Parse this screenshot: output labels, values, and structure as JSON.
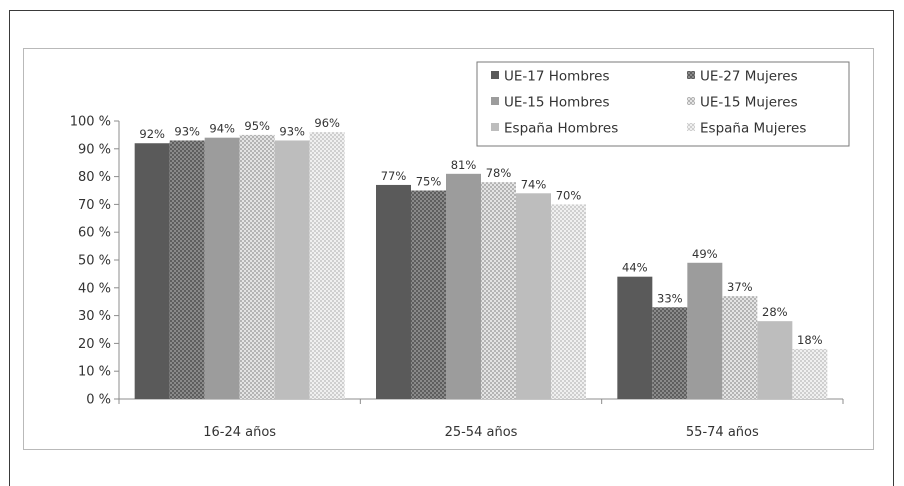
{
  "chart_data": {
    "type": "bar",
    "categories": [
      "16-24 años",
      "25-54 años",
      "55-74 años"
    ],
    "series": [
      {
        "name": "UE-17 Hombres",
        "values": [
          92,
          77,
          44
        ],
        "color": "#5a5a5a",
        "pattern": "solid"
      },
      {
        "name": "UE-27 Mujeres",
        "values": [
          93,
          75,
          33
        ],
        "color": "#6e6e6e",
        "pattern": "checker"
      },
      {
        "name": "UE-15 Hombres",
        "values": [
          94,
          81,
          49
        ],
        "color": "#9c9c9c",
        "pattern": "solid"
      },
      {
        "name": "UE-15 Mujeres",
        "values": [
          95,
          78,
          37
        ],
        "color": "#c8c8c8",
        "pattern": "dots"
      },
      {
        "name": "España Hombres",
        "values": [
          93,
          74,
          28
        ],
        "color": "#bdbdbd",
        "pattern": "solid"
      },
      {
        "name": "España Mujeres",
        "values": [
          96,
          70,
          18
        ],
        "color": "#dedede",
        "pattern": "dots-light"
      }
    ],
    "yticks": [
      "0 %",
      "10 %",
      "20 %",
      "30 %",
      "40 %",
      "50 %",
      "60 %",
      "70 %",
      "80 %",
      "90 %",
      "100 %"
    ],
    "ylim": [
      0,
      100
    ],
    "value_suffix": "%",
    "legend_position": "top-right",
    "title": "",
    "xlabel": "",
    "ylabel": ""
  }
}
